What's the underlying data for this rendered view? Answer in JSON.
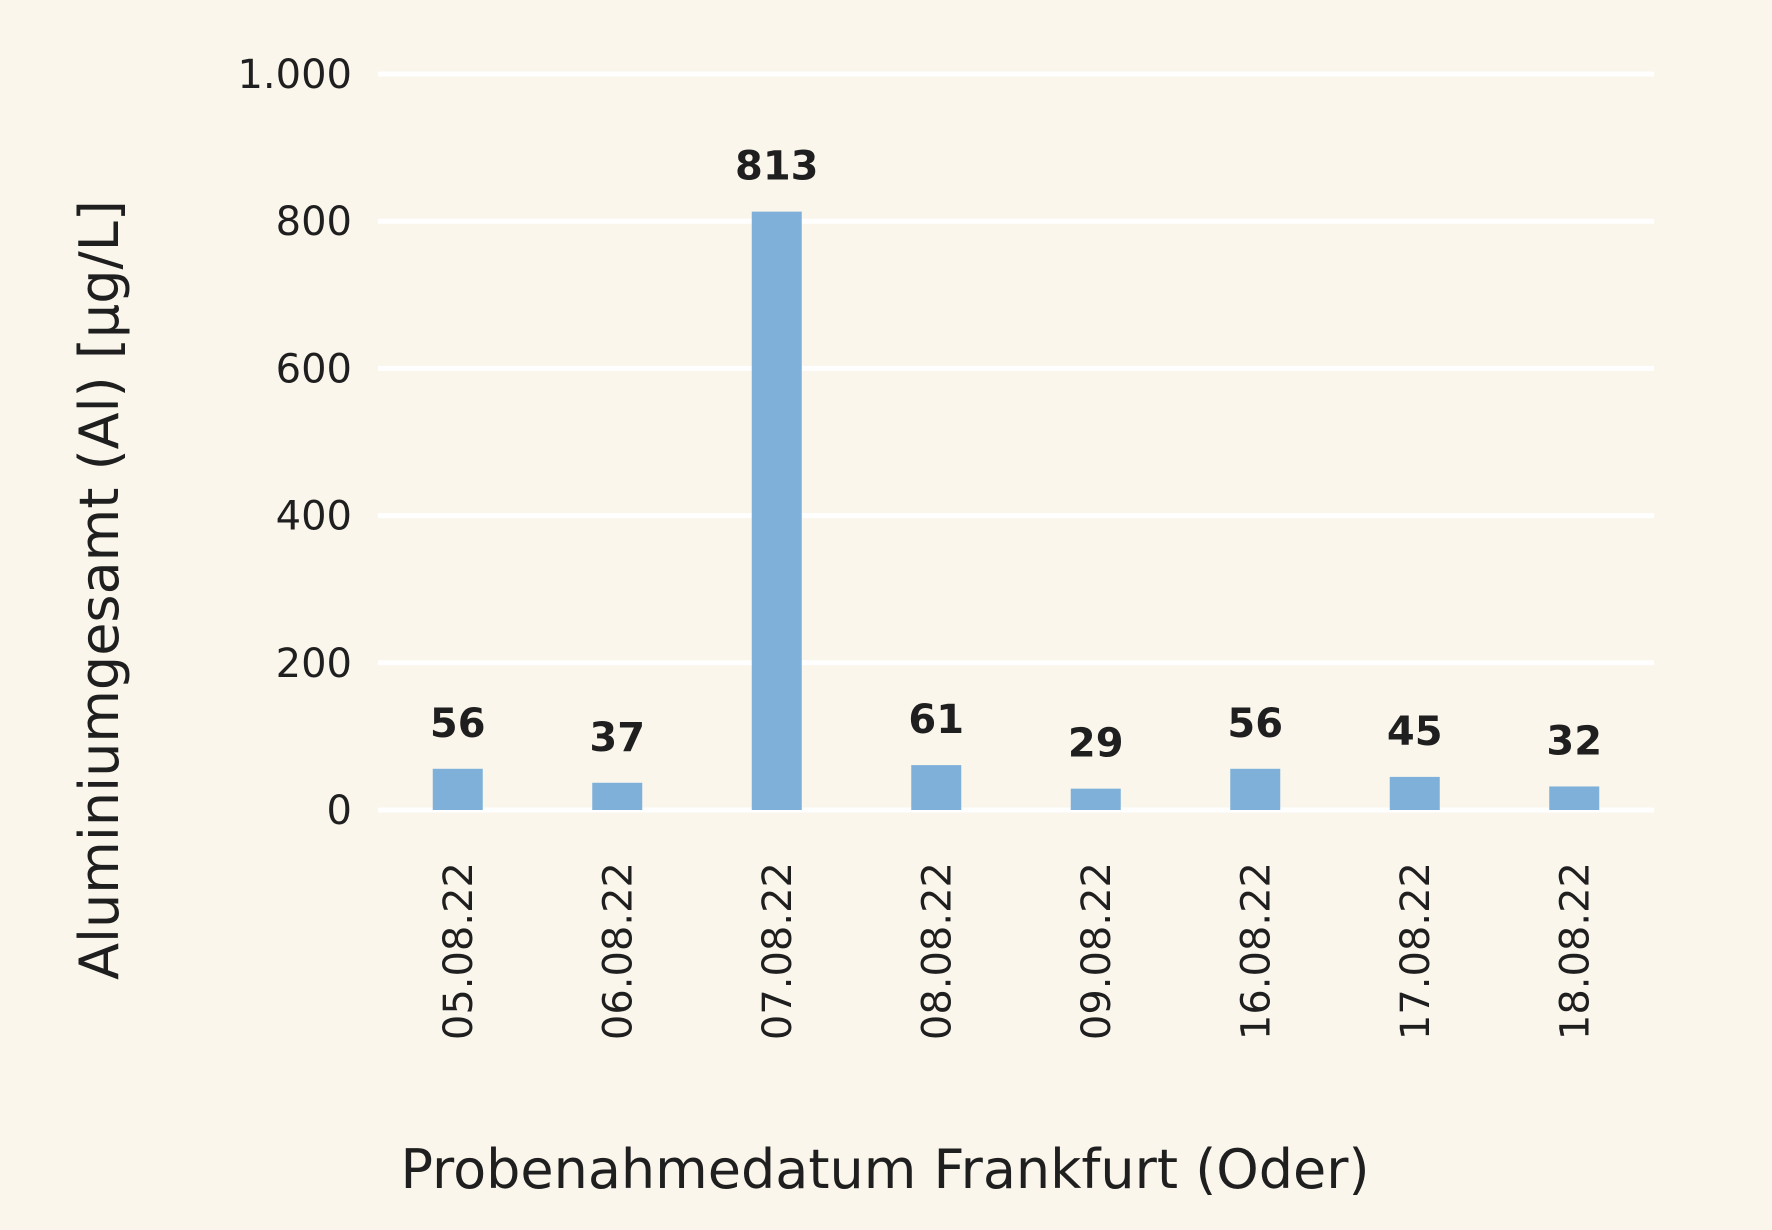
{
  "chart_data": {
    "type": "bar",
    "categories": [
      "05.08.22",
      "06.08.22",
      "07.08.22",
      "08.08.22",
      "09.08.22",
      "16.08.22",
      "17.08.22",
      "18.08.22"
    ],
    "values": [
      56,
      37,
      813,
      61,
      29,
      56,
      45,
      32
    ],
    "data_labels": [
      "56",
      "37",
      "813",
      "61",
      "29",
      "56",
      "45",
      "32"
    ],
    "xlabel": "Probenahmedatum Frankfurt (Oder)",
    "ylabel": "Aluminiumgesamt (Al) [µg/L]",
    "ylim": [
      0,
      1000
    ],
    "yticks": [
      0,
      200,
      400,
      600,
      800,
      1000
    ],
    "ytick_labels": [
      "0",
      "200",
      "400",
      "600",
      "800",
      "1.000"
    ],
    "grid": true,
    "legend": "none",
    "colors": {
      "bar": "#7eb0d9",
      "grid": "#ffffff",
      "background": "#faf6ec",
      "text": "#1f1f1f"
    }
  }
}
